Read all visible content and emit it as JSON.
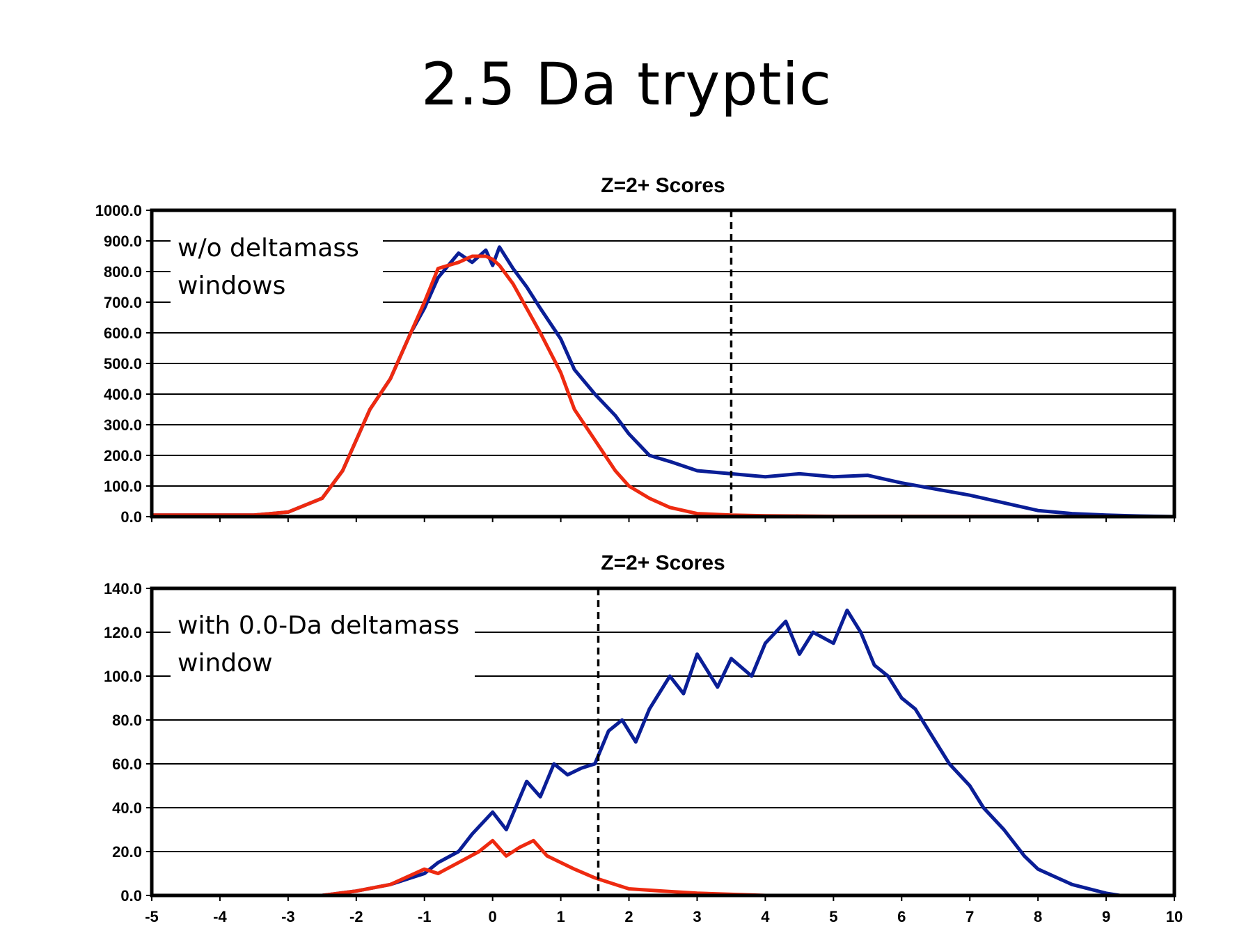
{
  "slide": {
    "title": "2.5 Da tryptic"
  },
  "colors": {
    "series_blue": "#0a1e96",
    "series_red": "#ee2a10",
    "axis": "#000000",
    "grid": "#000000"
  },
  "chart_data": [
    {
      "type": "line",
      "title": "Z=2+ Scores",
      "annotation": "w/o deltamass\nwindows",
      "xlim": [
        -5,
        10
      ],
      "ylim": [
        0,
        1000
      ],
      "y_ticks": [
        0,
        100,
        200,
        300,
        400,
        500,
        600,
        700,
        800,
        900,
        1000
      ],
      "y_tick_labels": [
        "0.0",
        "100.0",
        "200.0",
        "300.0",
        "400.0",
        "500.0",
        "600.0",
        "700.0",
        "800.0",
        "900.0",
        "1000.0"
      ],
      "x_ticks": [
        -5,
        -4,
        -3,
        -2,
        -1,
        0,
        1,
        2,
        3,
        4,
        5,
        6,
        7,
        8,
        9,
        10
      ],
      "threshold_x": 3.5,
      "grid": true,
      "series": [
        {
          "color": "#0a1e96",
          "x": [
            -5,
            -3.5,
            -3,
            -2.5,
            -2.2,
            -2,
            -1.8,
            -1.5,
            -1.2,
            -1,
            -0.8,
            -0.5,
            -0.3,
            -0.1,
            0,
            0.1,
            0.3,
            0.5,
            0.7,
            1,
            1.2,
            1.5,
            1.8,
            2,
            2.3,
            2.6,
            3,
            3.5,
            4,
            4.5,
            5,
            5.5,
            6,
            6.5,
            7,
            7.5,
            8,
            8.5,
            9,
            9.5,
            10
          ],
          "y": [
            5,
            5,
            15,
            60,
            150,
            250,
            350,
            450,
            600,
            680,
            780,
            860,
            830,
            870,
            820,
            880,
            810,
            750,
            680,
            580,
            480,
            400,
            330,
            270,
            200,
            180,
            150,
            140,
            130,
            140,
            130,
            135,
            110,
            90,
            70,
            45,
            20,
            10,
            5,
            2,
            0
          ]
        },
        {
          "color": "#ee2a10",
          "x": [
            -5,
            -3.5,
            -3,
            -2.5,
            -2.2,
            -2,
            -1.8,
            -1.5,
            -1.2,
            -1,
            -0.8,
            -0.5,
            -0.3,
            -0.1,
            0,
            0.1,
            0.3,
            0.5,
            0.7,
            1,
            1.2,
            1.5,
            1.8,
            2,
            2.3,
            2.6,
            3,
            3.5,
            4,
            4.5,
            5,
            10
          ],
          "y": [
            5,
            5,
            15,
            60,
            150,
            250,
            350,
            450,
            600,
            700,
            810,
            830,
            850,
            850,
            840,
            820,
            760,
            680,
            600,
            470,
            350,
            250,
            150,
            100,
            60,
            30,
            10,
            5,
            3,
            2,
            1,
            0
          ]
        }
      ]
    },
    {
      "type": "line",
      "title": "Z=2+ Scores",
      "annotation": "with 0.0-Da deltamass\nwindow",
      "xlim": [
        -5,
        10
      ],
      "ylim": [
        0,
        140
      ],
      "y_ticks": [
        0,
        20,
        40,
        60,
        80,
        100,
        120,
        140
      ],
      "y_tick_labels": [
        "0.0",
        "20.0",
        "40.0",
        "60.0",
        "80.0",
        "100.0",
        "120.0",
        "140.0"
      ],
      "x_ticks": [
        -5,
        -4,
        -3,
        -2,
        -1,
        0,
        1,
        2,
        3,
        4,
        5,
        6,
        7,
        8,
        9,
        10
      ],
      "x_tick_labels": [
        "-5",
        "-4",
        "-3",
        "-2",
        "-1",
        "0",
        "1",
        "2",
        "3",
        "4",
        "5",
        "6",
        "7",
        "8",
        "9",
        "10"
      ],
      "threshold_x": 1.55,
      "grid": true,
      "series": [
        {
          "color": "#0a1e96",
          "x": [
            -5,
            -2.5,
            -2,
            -1.5,
            -1,
            -0.8,
            -0.5,
            -0.3,
            0,
            0.2,
            0.5,
            0.7,
            0.9,
            1.1,
            1.3,
            1.5,
            1.7,
            1.9,
            2.1,
            2.3,
            2.6,
            2.8,
            3,
            3.3,
            3.5,
            3.8,
            4,
            4.3,
            4.5,
            4.7,
            5,
            5.2,
            5.4,
            5.6,
            5.8,
            6,
            6.2,
            6.5,
            6.7,
            7,
            7.2,
            7.5,
            7.8,
            8,
            8.5,
            9,
            9.2,
            10
          ],
          "y": [
            0,
            0,
            2,
            5,
            10,
            15,
            20,
            28,
            38,
            30,
            52,
            45,
            60,
            55,
            58,
            60,
            75,
            80,
            70,
            85,
            100,
            92,
            110,
            95,
            108,
            100,
            115,
            125,
            110,
            120,
            115,
            130,
            120,
            105,
            100,
            90,
            85,
            70,
            60,
            50,
            40,
            30,
            18,
            12,
            5,
            1,
            0,
            0
          ]
        },
        {
          "color": "#ee2a10",
          "x": [
            -5,
            -2.5,
            -2,
            -1.5,
            -1,
            -0.8,
            -0.5,
            -0.2,
            0,
            0.2,
            0.4,
            0.6,
            0.8,
            1,
            1.2,
            1.5,
            1.8,
            2,
            2.5,
            3,
            3.5,
            4,
            10
          ],
          "y": [
            0,
            0,
            2,
            5,
            12,
            10,
            15,
            20,
            25,
            18,
            22,
            25,
            18,
            15,
            12,
            8,
            5,
            3,
            2,
            1,
            0.5,
            0,
            0
          ]
        }
      ]
    }
  ]
}
